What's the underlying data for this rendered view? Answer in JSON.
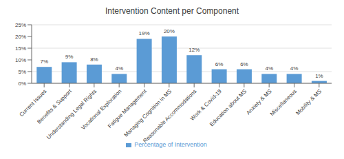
{
  "chart_data": {
    "type": "bar",
    "title": "Intervention Content per Component",
    "categories": [
      "Current Issues",
      "Benefits & Support",
      "Understanding Legal Rights",
      "Vocational Exploration",
      "Fatigue Management",
      "Managing Cognition in MS",
      "Reasonable Accommodations",
      "Work & Covid-19",
      "Education about MS",
      "Anxiety & MS",
      "Miscellaneous",
      "Mobility & MS"
    ],
    "series": [
      {
        "name": "Percentage of Intervention",
        "color": "#5B9BD5",
        "values": [
          7,
          9,
          8,
          4,
          19,
          20,
          12,
          6,
          6,
          4,
          4,
          1
        ],
        "value_labels": [
          "7%",
          "9%",
          "8%",
          "4%",
          "19%",
          "20%",
          "12%",
          "6%",
          "6%",
          "4%",
          "4%",
          "1%"
        ]
      }
    ],
    "ylim": [
      0,
      25
    ],
    "yticks": [
      {
        "value": 0,
        "label": "0%"
      },
      {
        "value": 5,
        "label": "5%"
      },
      {
        "value": 10,
        "label": "10%"
      },
      {
        "value": 15,
        "label": "15%"
      },
      {
        "value": 20,
        "label": "20%"
      },
      {
        "value": 25,
        "label": "25%"
      }
    ],
    "grid": true,
    "legend": "bottom",
    "data_labels": true
  }
}
